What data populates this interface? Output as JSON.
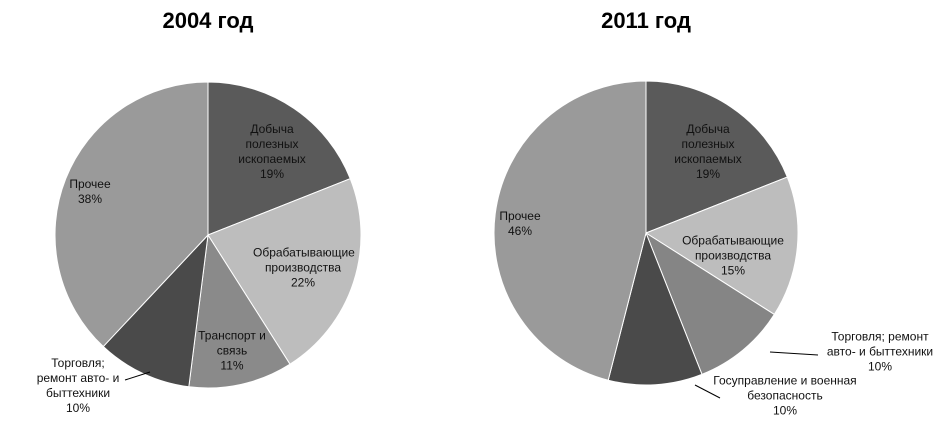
{
  "chart_data": [
    {
      "type": "pie",
      "title": "2004 год",
      "categories": [
        "Добыча полезных ископаемых",
        "Обрабатывающие производства",
        "Транспорт и связь",
        "Торговля; ремонт авто- и быттехники",
        "Прочее"
      ],
      "values": [
        19,
        22,
        11,
        10,
        38
      ],
      "value_labels": [
        "19%",
        "22%",
        "11%",
        "10%",
        "38%"
      ],
      "colors": [
        "#5a5a5a",
        "#bdbdbd",
        "#8a8a8a",
        "#4a4a4a",
        "#9a9a9a"
      ]
    },
    {
      "type": "pie",
      "title": "2011 год",
      "categories": [
        "Добыча полезных ископаемых",
        "Обрабатывающие производства",
        "Торговля; ремонт авто- и быттехники",
        "Госуправление и военная безопасность",
        "Прочее"
      ],
      "values": [
        19,
        15,
        10,
        10,
        46
      ],
      "value_labels": [
        "19%",
        "15%",
        "10%",
        "10%",
        "46%"
      ],
      "colors": [
        "#5a5a5a",
        "#bdbdbd",
        "#858585",
        "#4a4a4a",
        "#9a9a9a"
      ]
    }
  ]
}
